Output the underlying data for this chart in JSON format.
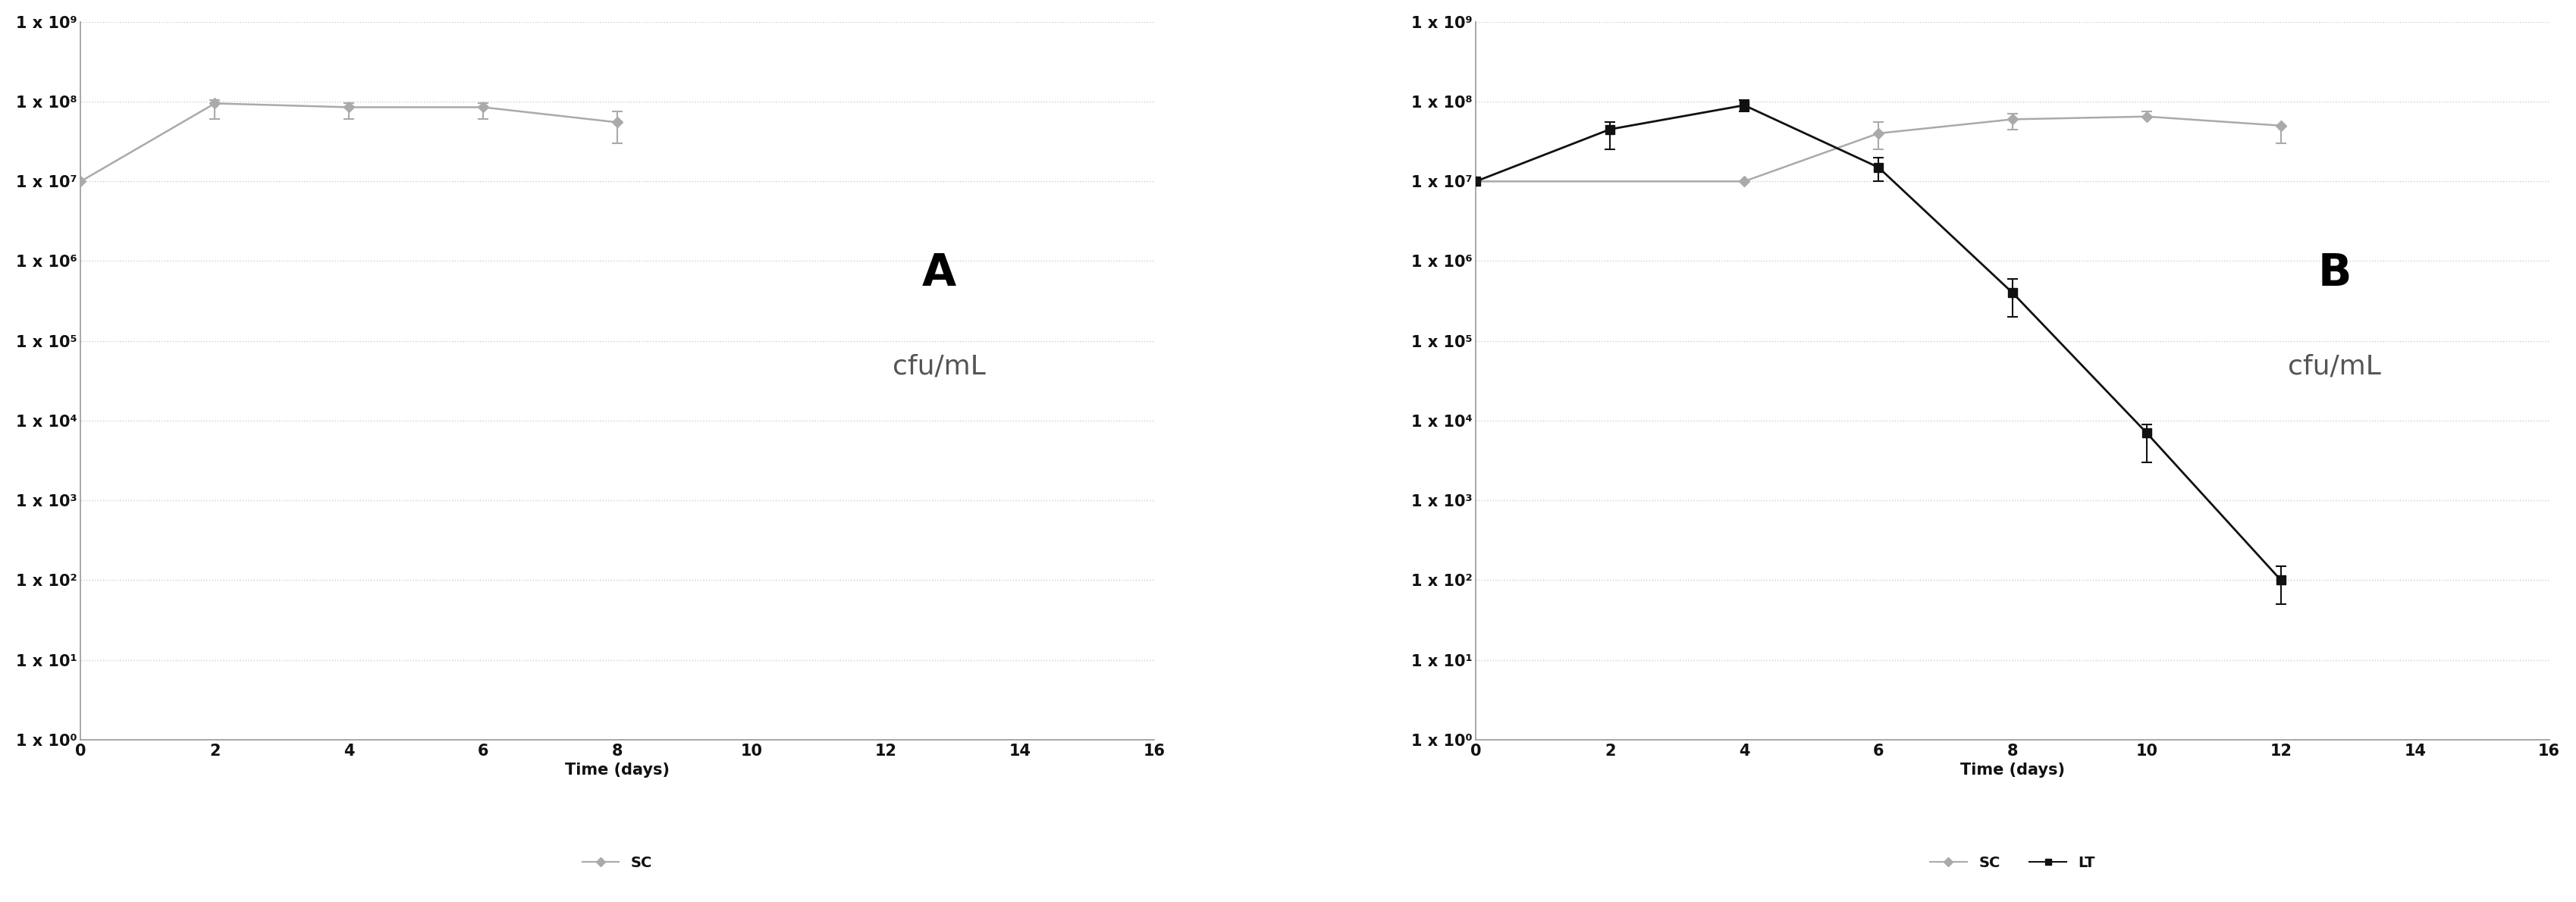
{
  "panel_A": {
    "title": "A",
    "label_cfuml": "cfu/mL",
    "sc_x": [
      0,
      2,
      4,
      6,
      8
    ],
    "sc_y": [
      10000000.0,
      95000000.0,
      85000000.0,
      85000000.0,
      55000000.0
    ],
    "sc_yerr": [
      [
        0,
        35000000.0,
        25000000.0,
        25000000.0,
        25000000.0
      ],
      [
        0,
        10000000.0,
        10000000.0,
        10000000.0,
        20000000.0
      ]
    ],
    "xlim": [
      0,
      16
    ],
    "xticks": [
      0,
      2,
      4,
      6,
      8,
      10,
      12,
      14,
      16
    ],
    "xlabel": "Time (days)"
  },
  "panel_B": {
    "title": "B",
    "label_cfuml": "cfu/mL",
    "sc_x": [
      0,
      4,
      6,
      8,
      10,
      12
    ],
    "sc_y": [
      10000000.0,
      10000000.0,
      40000000.0,
      60000000.0,
      65000000.0,
      50000000.0
    ],
    "sc_yerr": [
      [
        0,
        0,
        15000000.0,
        15000000.0,
        0,
        20000000.0
      ],
      [
        0,
        0,
        15000000.0,
        10000000.0,
        10000000.0,
        0
      ]
    ],
    "lt_x": [
      0,
      2,
      4,
      6,
      8,
      10,
      12
    ],
    "lt_y": [
      10000000.0,
      45000000.0,
      90000000.0,
      15000000.0,
      400000.0,
      7000.0,
      100.0
    ],
    "lt_yerr": [
      [
        0,
        20000000.0,
        15000000.0,
        5000000.0,
        200000.0,
        4000.0,
        50
      ],
      [
        0,
        10000000.0,
        15000000.0,
        5000000.0,
        200000.0,
        2000.0,
        50
      ]
    ],
    "xlim": [
      0,
      16
    ],
    "xticks": [
      0,
      2,
      4,
      6,
      8,
      10,
      12,
      14,
      16
    ],
    "xlabel": "Time (days)"
  },
  "sc_color": "#aaaaaa",
  "lt_color": "#111111",
  "grid_color": "#cccccc",
  "axis_color": "#999999",
  "text_color": "#111111",
  "background_color": "#ffffff",
  "ytick_fontsize": 15,
  "xtick_fontsize": 15,
  "xlabel_fontsize": 15,
  "title_fontsize": 42,
  "cfuml_fontsize": 26,
  "legend_fontsize": 14
}
